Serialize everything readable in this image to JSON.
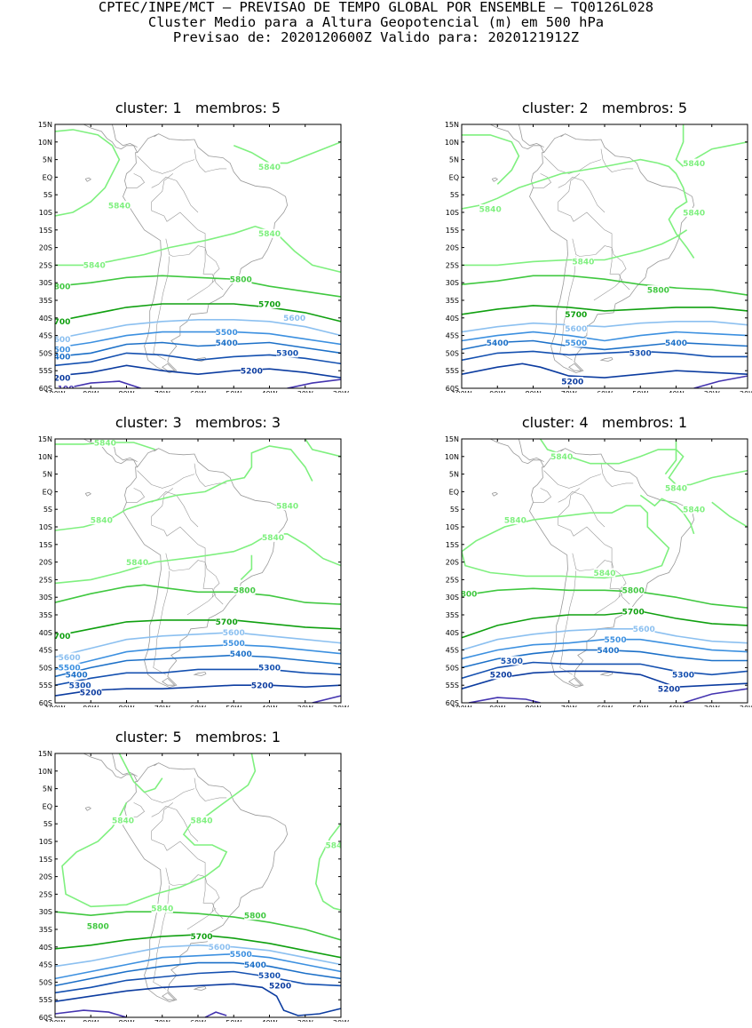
{
  "header": {
    "line1": "CPTEC/INPE/MCT – PREVISAO DE TEMPO GLOBAL POR ENSEMBLE – TQ0126L028",
    "line2": "Cluster Medio para a Altura Geopotencial (m) em 500 hPa",
    "line3": "Previsao de: 2020120600Z   Valido para: 2020121912Z"
  },
  "colors": {
    "c5840": "#7ff07f",
    "c5800": "#40c840",
    "c5700": "#10a010",
    "c5600": "#8cc0f0",
    "c5500": "#3c90e0",
    "c5400": "#1c70c8",
    "c5300": "#1450b0",
    "c5200": "#0c3ca0",
    "c5100": "#4434b0",
    "coast": "#999999"
  },
  "axes": {
    "lat_labels": [
      "15N",
      "10N",
      "5N",
      "EQ",
      "5S",
      "10S",
      "15S",
      "20S",
      "25S",
      "30S",
      "35S",
      "40S",
      "45S",
      "50S",
      "55S",
      "60S"
    ],
    "lon_labels": [
      "100W",
      "90W",
      "80W",
      "70W",
      "60W",
      "50W",
      "40W",
      "30W",
      "20W"
    ],
    "lat_range": [
      -60,
      15
    ],
    "lon_range": [
      -100,
      -20
    ]
  },
  "panels": [
    {
      "title": "cluster: 1   membros: 5",
      "labels": [
        {
          "text": "5840",
          "lon": -40,
          "lat": 3,
          "level": "c5840"
        },
        {
          "text": "5840",
          "lon": -82,
          "lat": -8,
          "level": "c5840"
        },
        {
          "text": "5840",
          "lon": -40,
          "lat": -16,
          "level": "c5840"
        },
        {
          "text": "5840",
          "lon": -89,
          "lat": -25,
          "level": "c5840"
        },
        {
          "text": "5800",
          "lon": -48,
          "lat": -29,
          "level": "c5800"
        },
        {
          "text": "800",
          "lon": -98,
          "lat": -31,
          "level": "c5800"
        },
        {
          "text": "5700",
          "lon": -40,
          "lat": -36,
          "level": "c5700"
        },
        {
          "text": "700",
          "lon": -98,
          "lat": -41,
          "level": "c5700"
        },
        {
          "text": "5600",
          "lon": -33,
          "lat": -40,
          "level": "c5600"
        },
        {
          "text": "600",
          "lon": -98,
          "lat": -46,
          "level": "c5600"
        },
        {
          "text": "5500",
          "lon": -52,
          "lat": -44,
          "level": "c5500"
        },
        {
          "text": "500",
          "lon": -98,
          "lat": -49,
          "level": "c5500"
        },
        {
          "text": "5400",
          "lon": -52,
          "lat": -47,
          "level": "c5400"
        },
        {
          "text": "400",
          "lon": -98,
          "lat": -51,
          "level": "c5400"
        },
        {
          "text": "5300",
          "lon": -35,
          "lat": -50,
          "level": "c5300"
        },
        {
          "text": "5200",
          "lon": -45,
          "lat": -55,
          "level": "c5200"
        },
        {
          "text": "200",
          "lon": -98,
          "lat": -57,
          "level": "c5200"
        },
        {
          "text": "100",
          "lon": -97,
          "lat": -60,
          "level": "c5100"
        }
      ]
    },
    {
      "title": "cluster: 2   membros: 5",
      "labels": [
        {
          "text": "5840",
          "lon": -35,
          "lat": 4,
          "level": "c5840"
        },
        {
          "text": "5840",
          "lon": -92,
          "lat": -9,
          "level": "c5840"
        },
        {
          "text": "5840",
          "lon": -35,
          "lat": -10,
          "level": "c5840"
        },
        {
          "text": "5840",
          "lon": -66,
          "lat": -24,
          "level": "c5840"
        },
        {
          "text": "5800",
          "lon": -45,
          "lat": -32,
          "level": "c5800"
        },
        {
          "text": "5700",
          "lon": -68,
          "lat": -39,
          "level": "c5700"
        },
        {
          "text": "5600",
          "lon": -68,
          "lat": -43,
          "level": "c5600"
        },
        {
          "text": "5500",
          "lon": -68,
          "lat": -47,
          "level": "c5500"
        },
        {
          "text": "5400",
          "lon": -90,
          "lat": -47,
          "level": "c5400"
        },
        {
          "text": "5400",
          "lon": -40,
          "lat": -47,
          "level": "c5400"
        },
        {
          "text": "5300",
          "lon": -50,
          "lat": -50,
          "level": "c5300"
        },
        {
          "text": "5200",
          "lon": -69,
          "lat": -58,
          "level": "c5200"
        }
      ]
    },
    {
      "title": "cluster: 3   membros: 3",
      "labels": [
        {
          "text": "5840",
          "lon": -86,
          "lat": 14,
          "level": "c5840"
        },
        {
          "text": "5840",
          "lon": -35,
          "lat": -4,
          "level": "c5840"
        },
        {
          "text": "5840",
          "lon": -87,
          "lat": -8,
          "level": "c5840"
        },
        {
          "text": "5840",
          "lon": -39,
          "lat": -13,
          "level": "c5840"
        },
        {
          "text": "5840",
          "lon": -77,
          "lat": -20,
          "level": "c5840"
        },
        {
          "text": "5800",
          "lon": -47,
          "lat": -28,
          "level": "c5800"
        },
        {
          "text": "5700",
          "lon": -52,
          "lat": -37,
          "level": "c5700"
        },
        {
          "text": "700",
          "lon": -98,
          "lat": -41,
          "level": "c5700"
        },
        {
          "text": "5600",
          "lon": -50,
          "lat": -40,
          "level": "c5600"
        },
        {
          "text": "5600",
          "lon": -96,
          "lat": -47,
          "level": "c5600"
        },
        {
          "text": "5500",
          "lon": -50,
          "lat": -43,
          "level": "c5500"
        },
        {
          "text": "5500",
          "lon": -96,
          "lat": -50,
          "level": "c5500"
        },
        {
          "text": "5400",
          "lon": -48,
          "lat": -46,
          "level": "c5400"
        },
        {
          "text": "5400",
          "lon": -94,
          "lat": -52,
          "level": "c5400"
        },
        {
          "text": "5300",
          "lon": -40,
          "lat": -50,
          "level": "c5300"
        },
        {
          "text": "5300",
          "lon": -93,
          "lat": -55,
          "level": "c5300"
        },
        {
          "text": "5200",
          "lon": -42,
          "lat": -55,
          "level": "c5200"
        },
        {
          "text": "5200",
          "lon": -90,
          "lat": -57,
          "level": "c5200"
        }
      ]
    },
    {
      "title": "cluster: 4   membros: 1",
      "labels": [
        {
          "text": "5840",
          "lon": -72,
          "lat": 10,
          "level": "c5840"
        },
        {
          "text": "5840",
          "lon": -40,
          "lat": 1,
          "level": "c5840"
        },
        {
          "text": "5840",
          "lon": -35,
          "lat": -5,
          "level": "c5840"
        },
        {
          "text": "5840",
          "lon": -85,
          "lat": -8,
          "level": "c5840"
        },
        {
          "text": "5840",
          "lon": -60,
          "lat": -23,
          "level": "c5840"
        },
        {
          "text": "800",
          "lon": -98,
          "lat": -29,
          "level": "c5800"
        },
        {
          "text": "5800",
          "lon": -52,
          "lat": -28,
          "level": "c5800"
        },
        {
          "text": "5700",
          "lon": -52,
          "lat": -34,
          "level": "c5700"
        },
        {
          "text": "5600",
          "lon": -49,
          "lat": -39,
          "level": "c5600"
        },
        {
          "text": "5500",
          "lon": -57,
          "lat": -42,
          "level": "c5500"
        },
        {
          "text": "5400",
          "lon": -59,
          "lat": -45,
          "level": "c5400"
        },
        {
          "text": "5300",
          "lon": -86,
          "lat": -48,
          "level": "c5300"
        },
        {
          "text": "5300",
          "lon": -38,
          "lat": -52,
          "level": "c5300"
        },
        {
          "text": "5200",
          "lon": -89,
          "lat": -52,
          "level": "c5200"
        },
        {
          "text": "5200",
          "lon": -42,
          "lat": -56,
          "level": "c5200"
        }
      ]
    },
    {
      "title": "cluster: 5   membros: 1",
      "labels": [
        {
          "text": "5840",
          "lon": -81,
          "lat": -4,
          "level": "c5840"
        },
        {
          "text": "5840",
          "lon": -59,
          "lat": -4,
          "level": "c5840"
        },
        {
          "text": "584",
          "lon": -22,
          "lat": -11,
          "level": "c5840"
        },
        {
          "text": "5840",
          "lon": -70,
          "lat": -29,
          "level": "c5840"
        },
        {
          "text": "5800",
          "lon": -88,
          "lat": -34,
          "level": "c5800"
        },
        {
          "text": "5800",
          "lon": -44,
          "lat": -31,
          "level": "c5800"
        },
        {
          "text": "5700",
          "lon": -59,
          "lat": -37,
          "level": "c5700"
        },
        {
          "text": "5600",
          "lon": -54,
          "lat": -40,
          "level": "c5600"
        },
        {
          "text": "5500",
          "lon": -48,
          "lat": -42,
          "level": "c5500"
        },
        {
          "text": "5400",
          "lon": -44,
          "lat": -45,
          "level": "c5400"
        },
        {
          "text": "5300",
          "lon": -40,
          "lat": -48,
          "level": "c5300"
        },
        {
          "text": "5200",
          "lon": -37,
          "lat": -51,
          "level": "c5200"
        }
      ]
    }
  ]
}
